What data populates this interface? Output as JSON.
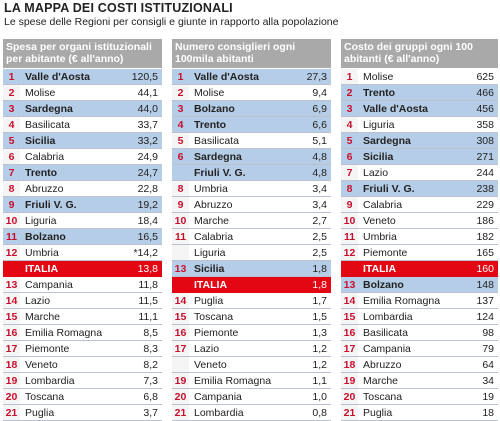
{
  "title": "LA MAPPA DEI COSTI ISTITUZIONALI",
  "subtitle": "Le spese delle Regioni per consigli e giunte in rapporto alla popolazione",
  "panels": [
    {
      "header": [
        "Spesa per organi istituzionali",
        "per abitante (€ all'anno)"
      ],
      "rows": [
        {
          "rank": "1",
          "name": "Valle d'Aosta",
          "value": "120,5",
          "hl": true
        },
        {
          "rank": "2",
          "name": "Molise",
          "value": "44,1",
          "hl": false
        },
        {
          "rank": "3",
          "name": "Sardegna",
          "value": "44,0",
          "hl": true
        },
        {
          "rank": "4",
          "name": "Basilicata",
          "value": "33,7",
          "hl": false
        },
        {
          "rank": "5",
          "name": "Sicilia",
          "value": "33,2",
          "hl": true
        },
        {
          "rank": "6",
          "name": "Calabria",
          "value": "24,9",
          "hl": false
        },
        {
          "rank": "7",
          "name": "Trento",
          "value": "24,7",
          "hl": true
        },
        {
          "rank": "8",
          "name": "Abruzzo",
          "value": "22,8",
          "hl": false
        },
        {
          "rank": "9",
          "name": "Friuli V. G.",
          "value": "19,2",
          "hl": true
        },
        {
          "rank": "10",
          "name": "Liguria",
          "value": "18,4",
          "hl": false
        },
        {
          "rank": "11",
          "name": "Bolzano",
          "value": "16,5",
          "hl": true
        },
        {
          "rank": "12",
          "name": "Umbria",
          "value": "*14,2",
          "hl": false
        },
        {
          "rank": "",
          "name": "ITALIA",
          "value": "13,8",
          "italia": true
        },
        {
          "rank": "13",
          "name": "Campania",
          "value": "11,8",
          "hl": false
        },
        {
          "rank": "14",
          "name": "Lazio",
          "value": "11,5",
          "hl": false
        },
        {
          "rank": "15",
          "name": "Marche",
          "value": "11,1",
          "hl": false
        },
        {
          "rank": "16",
          "name": "Emilia Romagna",
          "value": "8,5",
          "hl": false
        },
        {
          "rank": "17",
          "name": "Piemonte",
          "value": "8,3",
          "hl": false
        },
        {
          "rank": "18",
          "name": "Veneto",
          "value": "8,2",
          "hl": false
        },
        {
          "rank": "19",
          "name": "Lombardia",
          "value": "7,3",
          "hl": false
        },
        {
          "rank": "20",
          "name": "Toscana",
          "value": "6,8",
          "hl": false
        },
        {
          "rank": "21",
          "name": "Puglia",
          "value": "3,7",
          "hl": false
        }
      ]
    },
    {
      "header": [
        "Numero consiglieri ogni",
        "100mila abitanti"
      ],
      "rows": [
        {
          "rank": "1",
          "name": "Valle d'Aosta",
          "value": "27,3",
          "hl": true
        },
        {
          "rank": "2",
          "name": "Molise",
          "value": "9,4",
          "hl": false
        },
        {
          "rank": "3",
          "name": "Bolzano",
          "value": "6,9",
          "hl": true
        },
        {
          "rank": "4",
          "name": "Trento",
          "value": "6,6",
          "hl": true
        },
        {
          "rank": "5",
          "name": "Basilicata",
          "value": "5,1",
          "hl": false
        },
        {
          "rank": "6",
          "name": "Sardegna",
          "value": "4,8",
          "hl": true
        },
        {
          "rank": "",
          "name": "Friuli V. G.",
          "value": "4,8",
          "hl": true
        },
        {
          "rank": "8",
          "name": "Umbria",
          "value": "3,4",
          "hl": false
        },
        {
          "rank": "9",
          "name": "Abruzzo",
          "value": "3,4",
          "hl": false
        },
        {
          "rank": "10",
          "name": "Marche",
          "value": "2,7",
          "hl": false
        },
        {
          "rank": "11",
          "name": "Calabria",
          "value": "2,5",
          "hl": false
        },
        {
          "rank": "",
          "name": "Liguria",
          "value": "2,5",
          "hl": false
        },
        {
          "rank": "13",
          "name": "Sicilia",
          "value": "1,8",
          "hl": true
        },
        {
          "rank": "",
          "name": "ITALIA",
          "value": "1,8",
          "italia": true
        },
        {
          "rank": "14",
          "name": "Puglia",
          "value": "1,7",
          "hl": false
        },
        {
          "rank": "15",
          "name": "Toscana",
          "value": "1,5",
          "hl": false
        },
        {
          "rank": "16",
          "name": "Piemonte",
          "value": "1,3",
          "hl": false
        },
        {
          "rank": "17",
          "name": "Lazio",
          "value": "1,2",
          "hl": false
        },
        {
          "rank": "",
          "name": "Veneto",
          "value": "1,2",
          "hl": false
        },
        {
          "rank": "19",
          "name": "Emilia Romagna",
          "value": "1,1",
          "hl": false
        },
        {
          "rank": "20",
          "name": "Campania",
          "value": "1,0",
          "hl": false
        },
        {
          "rank": "21",
          "name": "Lombardia",
          "value": "0,8",
          "hl": false
        }
      ]
    },
    {
      "header": [
        "Costo dei gruppi ogni 100",
        "abitanti (€ all'anno)"
      ],
      "rows": [
        {
          "rank": "1",
          "name": "Molise",
          "value": "625",
          "hl": false
        },
        {
          "rank": "2",
          "name": "Trento",
          "value": "466",
          "hl": true
        },
        {
          "rank": "3",
          "name": "Valle d'Aosta",
          "value": "456",
          "hl": true
        },
        {
          "rank": "4",
          "name": "Liguria",
          "value": "358",
          "hl": false
        },
        {
          "rank": "5",
          "name": "Sardegna",
          "value": "308",
          "hl": true
        },
        {
          "rank": "6",
          "name": "Sicilia",
          "value": "271",
          "hl": true
        },
        {
          "rank": "7",
          "name": "Lazio",
          "value": "244",
          "hl": false
        },
        {
          "rank": "8",
          "name": "Friuli V. G.",
          "value": "238",
          "hl": true
        },
        {
          "rank": "9",
          "name": "Calabria",
          "value": "229",
          "hl": false
        },
        {
          "rank": "10",
          "name": "Veneto",
          "value": "186",
          "hl": false
        },
        {
          "rank": "11",
          "name": "Umbria",
          "value": "182",
          "hl": false
        },
        {
          "rank": "12",
          "name": "Piemonte",
          "value": "165",
          "hl": false
        },
        {
          "rank": "",
          "name": "ITALIA",
          "value": "160",
          "italia": true
        },
        {
          "rank": "13",
          "name": "Bolzano",
          "value": "148",
          "hl": true
        },
        {
          "rank": "14",
          "name": "Emilia Romagna",
          "value": "137",
          "hl": false
        },
        {
          "rank": "15",
          "name": "Lombardia",
          "value": "124",
          "hl": false
        },
        {
          "rank": "16",
          "name": "Basilicata",
          "value": "98",
          "hl": false
        },
        {
          "rank": "17",
          "name": "Campania",
          "value": "79",
          "hl": false
        },
        {
          "rank": "18",
          "name": "Abruzzo",
          "value": "64",
          "hl": false
        },
        {
          "rank": "19",
          "name": "Marche",
          "value": "34",
          "hl": false
        },
        {
          "rank": "20",
          "name": "Toscana",
          "value": "19",
          "hl": false
        },
        {
          "rank": "21",
          "name": "Puglia",
          "value": "18",
          "hl": false
        }
      ]
    }
  ]
}
